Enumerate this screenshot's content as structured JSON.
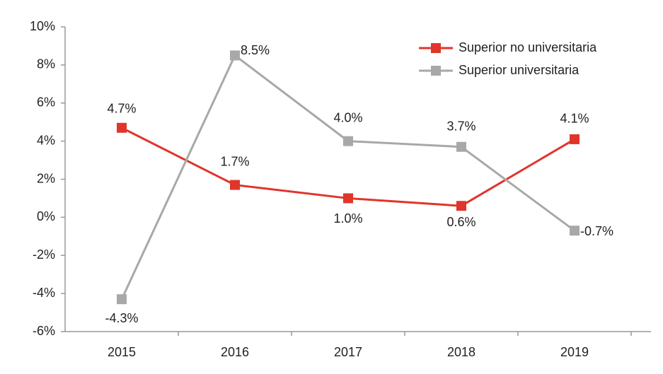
{
  "chart_data": {
    "type": "line",
    "categories": [
      "2015",
      "2016",
      "2017",
      "2018",
      "2019"
    ],
    "series": [
      {
        "name": "Superior no universitaria",
        "color": "#e0352b",
        "values": [
          4.7,
          1.7,
          1.0,
          0.6,
          4.1
        ],
        "value_labels": [
          "4.7%",
          "1.7%",
          "1.0%",
          "0.6%",
          "4.1%"
        ]
      },
      {
        "name": "Superior universitaria",
        "color": "#a8a8a8",
        "values": [
          -4.3,
          8.5,
          4.0,
          3.7,
          -0.7
        ],
        "value_labels": [
          "-4.3%",
          "8.5%",
          "4.0%",
          "3.7%",
          "-0.7%"
        ]
      }
    ],
    "ylim": [
      -6,
      10
    ],
    "yticks": [
      {
        "value": -6,
        "label": "-6%"
      },
      {
        "value": -4,
        "label": "-4%"
      },
      {
        "value": -2,
        "label": "-2%"
      },
      {
        "value": 0,
        "label": "0%"
      },
      {
        "value": 2,
        "label": "2%"
      },
      {
        "value": 4,
        "label": "4%"
      },
      {
        "value": 6,
        "label": "6%"
      },
      {
        "value": 8,
        "label": "8%"
      },
      {
        "value": 10,
        "label": "10%"
      }
    ],
    "grid": false,
    "legend": "upper right"
  }
}
